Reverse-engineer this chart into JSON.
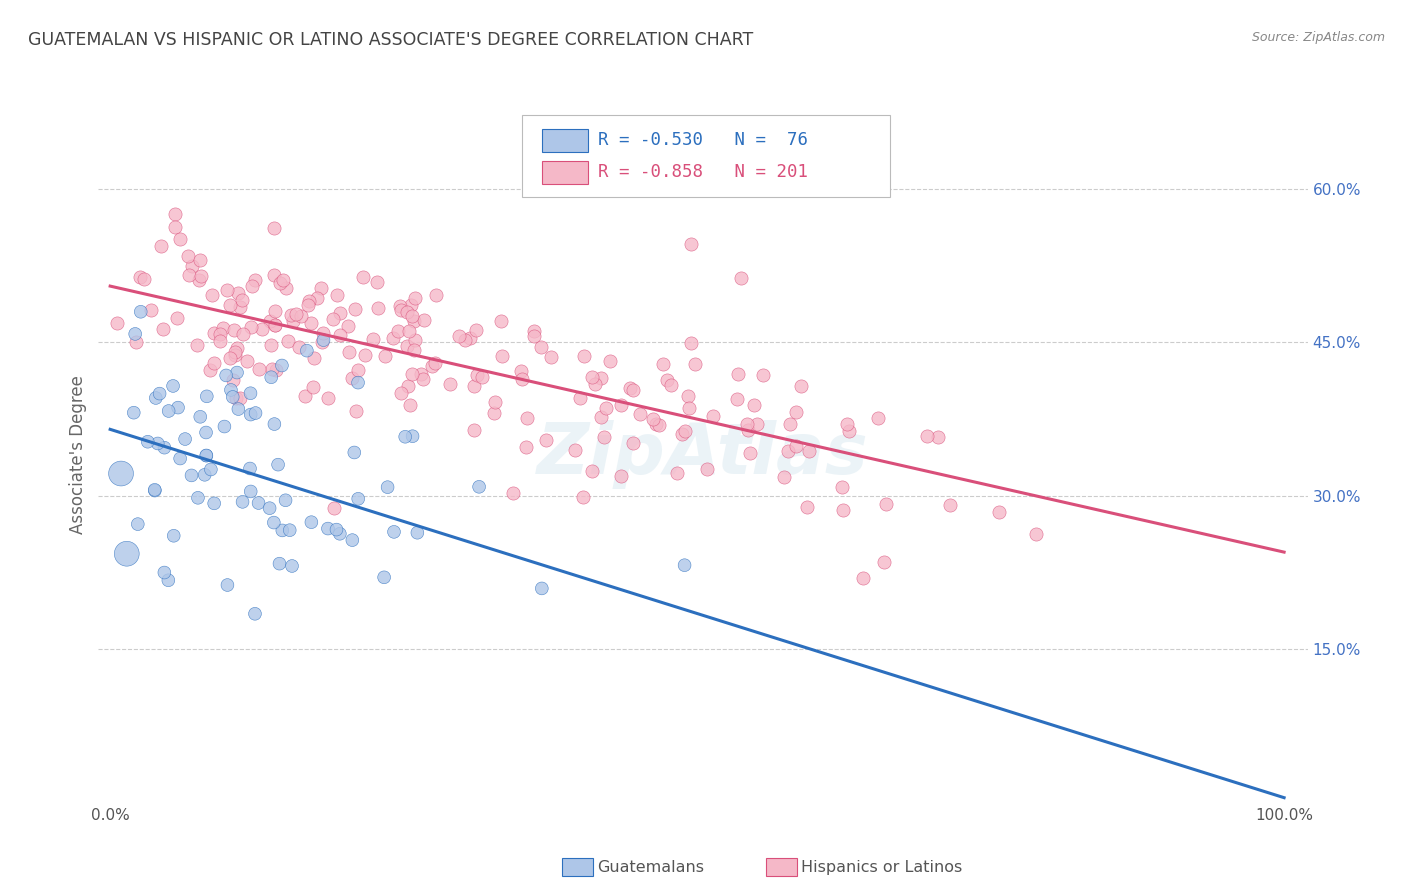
{
  "title": "GUATEMALAN VS HISPANIC OR LATINO ASSOCIATE'S DEGREE CORRELATION CHART",
  "source": "Source: ZipAtlas.com",
  "ylabel": "Associate's Degree",
  "blue_R": "-0.530",
  "blue_N": "76",
  "pink_R": "-0.858",
  "pink_N": "201",
  "blue_color": "#aec6e8",
  "pink_color": "#f5b8c8",
  "blue_line_color": "#2c6fbe",
  "pink_line_color": "#d94f7a",
  "blue_line": [
    [
      0.0,
      0.365
    ],
    [
      1.0,
      0.005
    ]
  ],
  "pink_line": [
    [
      0.0,
      0.505
    ],
    [
      1.0,
      0.245
    ]
  ],
  "watermark": "ZipAtlas",
  "background_color": "#ffffff",
  "title_color": "#444444",
  "axis_label_color": "#666666",
  "ytick_color": "#4472c4",
  "xtick_color": "#555555",
  "grid_color": "#cccccc",
  "legend_border_color": "#cccccc",
  "blue_seed": 42,
  "pink_seed": 99
}
